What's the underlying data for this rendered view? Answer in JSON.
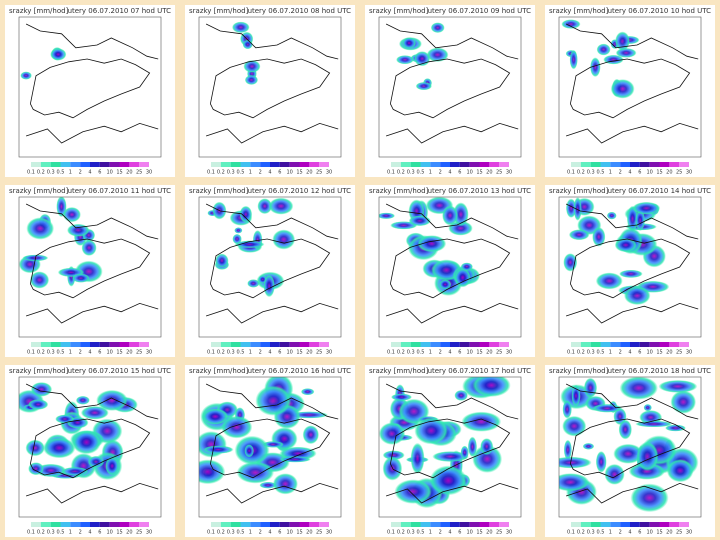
{
  "variable": "srazky [mm/hod]",
  "times": [
    "utery 06.07.2010 07 hod UTC",
    "utery 06.07.2010 08 hod UTC",
    "utery 06.07.2010 09 hod UTC",
    "utery 06.07.2010 10 hod UTC",
    "utery 06.07.2010 11 hod UTC",
    "utery 06.07.2010 12 hod UTC",
    "utery 06.07.2010 13 hod UTC",
    "utery 06.07.2010 14 hod UTC",
    "utery 06.07.2010 15 hod UTC",
    "utery 06.07.2010 16 hod UTC",
    "utery 06.07.2010 17 hod UTC",
    "utery 06.07.2010 18 hod UTC"
  ],
  "colorbar": [
    "0.1",
    "0.2",
    "0.3",
    "0.5",
    "1",
    "2",
    "4",
    "6",
    "10",
    "15",
    "20",
    "25",
    "30"
  ]
}
